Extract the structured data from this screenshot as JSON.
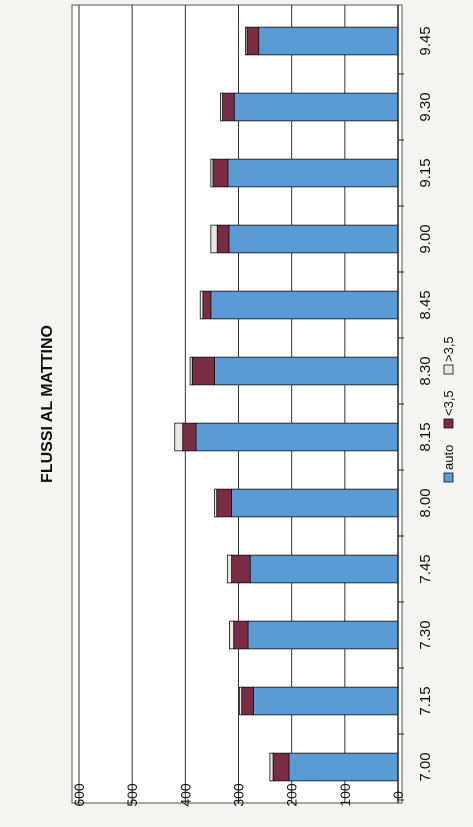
{
  "chart_data": {
    "type": "bar",
    "stacked": true,
    "orientation": "rotated-horizontal",
    "title": "FLUSSI AL MATTINO",
    "categories": [
      "7.00",
      "7.15",
      "7.30",
      "7.45",
      "8.00",
      "8.15",
      "8.30",
      "8.45",
      "9.00",
      "9.15",
      "9.30",
      "9.45"
    ],
    "series": [
      {
        "name": "auto",
        "color": "#5b9bd5",
        "values": [
          205,
          272,
          282,
          278,
          313,
          380,
          345,
          352,
          318,
          320,
          308,
          262
        ]
      },
      {
        "name": "<3,5",
        "color": "#7b2c45",
        "values": [
          30,
          22,
          27,
          35,
          28,
          25,
          42,
          15,
          22,
          28,
          22,
          22
        ]
      },
      {
        "name": ">3,5",
        "color": "#e8e8e0",
        "values": [
          6,
          4,
          8,
          8,
          4,
          15,
          4,
          5,
          12,
          4,
          4,
          3
        ]
      }
    ],
    "ylim": [
      0,
      600
    ],
    "yticks": [
      "0",
      "100",
      "200",
      "300",
      "400",
      "500",
      "600"
    ],
    "grid": true,
    "legend": "bottom"
  }
}
